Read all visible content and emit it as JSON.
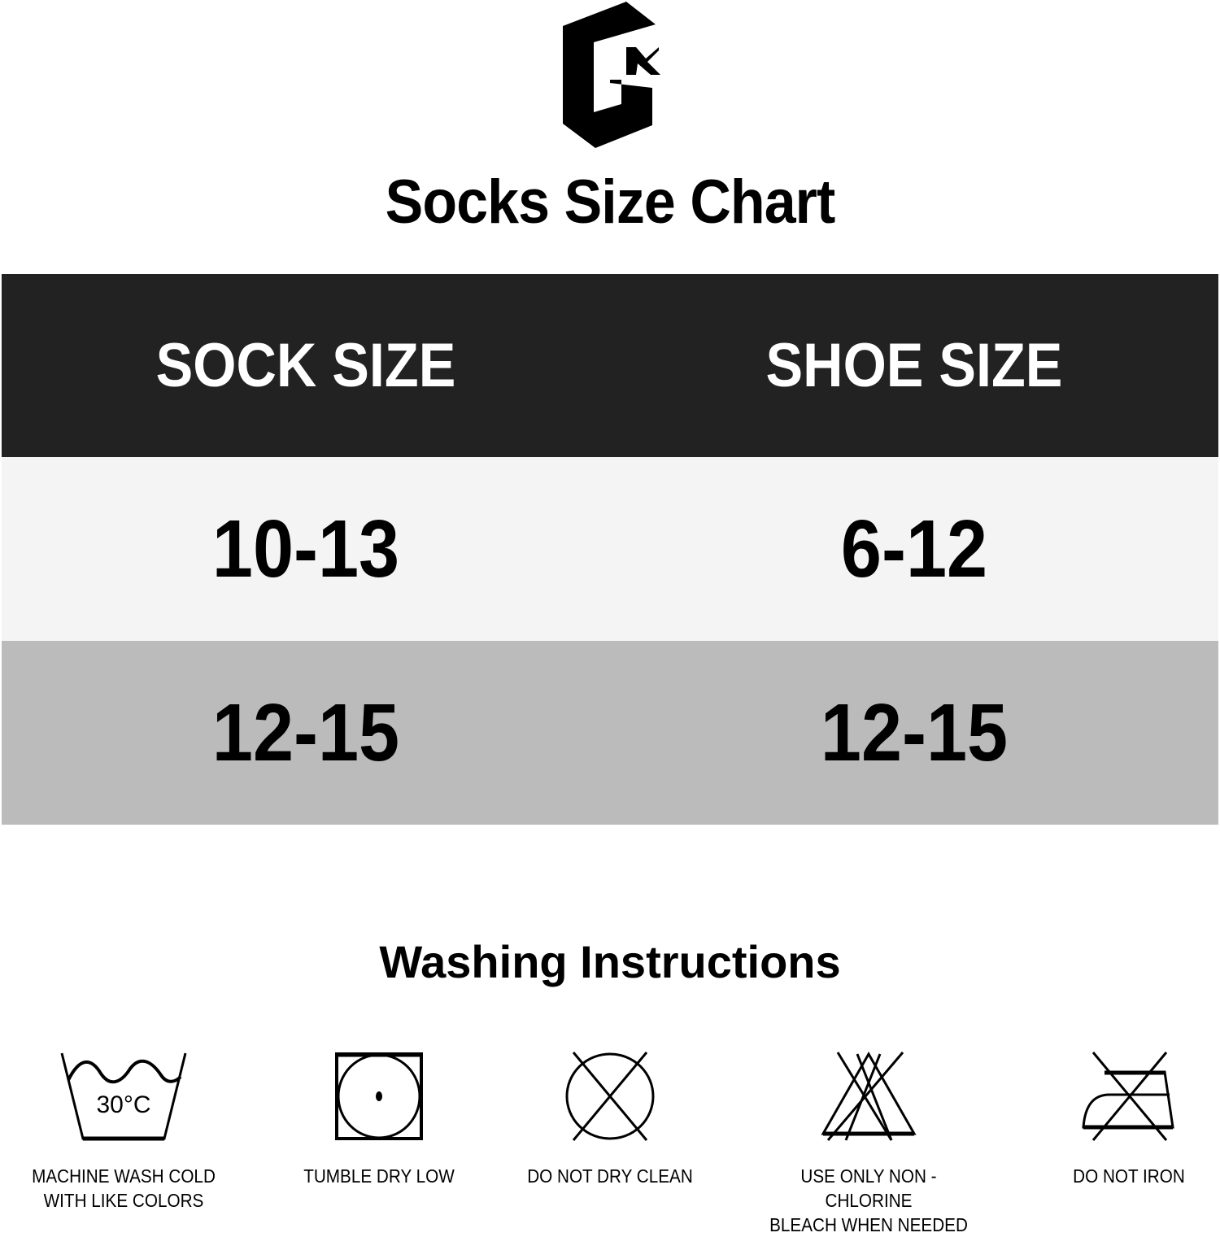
{
  "logo": {
    "text": "GK"
  },
  "title": "Socks Size Chart",
  "table": {
    "headers": [
      "SOCK SIZE",
      "SHOE SIZE"
    ],
    "rows": [
      [
        "10-13",
        "6-12"
      ],
      [
        "12-15",
        "12-15"
      ]
    ],
    "colors": {
      "header": "#222222",
      "row1": "#f4f4f4",
      "row2": "#bbbbbb"
    }
  },
  "washing": {
    "title": "Washing Instructions",
    "items": [
      {
        "icon": "wash-tub-30c-icon",
        "temp": "30°C",
        "label": [
          "MACHINE WASH COLD",
          "WITH LIKE COLORS"
        ]
      },
      {
        "icon": "tumble-dry-low-icon",
        "label": [
          "TUMBLE DRY LOW"
        ]
      },
      {
        "icon": "do-not-dry-clean-icon",
        "label": [
          "DO NOT DRY CLEAN"
        ]
      },
      {
        "icon": "non-chlorine-bleach-icon",
        "label": [
          "USE ONLY NON - CHLORINE",
          "BLEACH WHEN NEEDED"
        ]
      },
      {
        "icon": "do-not-iron-icon",
        "label": [
          "DO NOT IRON"
        ]
      }
    ]
  }
}
